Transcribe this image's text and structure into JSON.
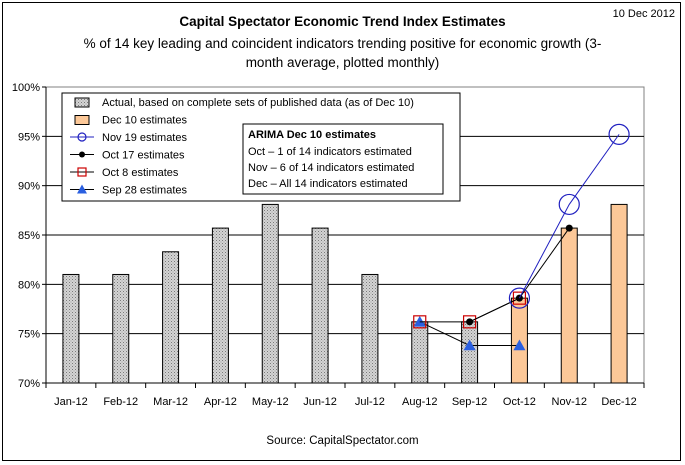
{
  "date_label": "10 Dec 2012",
  "source": "Source: CapitalSpectator.com",
  "colors": {
    "actual_fill": "#c8c8c8",
    "estimate_fill": "#fcc898",
    "estimate_stroke": "#000000",
    "nov19": "#2020c0",
    "oct17": "#000000",
    "oct8": "#cc0000",
    "sep28": "#2a5fe0"
  },
  "chart_data": {
    "type": "bar",
    "title": "Capital Spectator Economic Trend Index Estimates",
    "subtitle_line1": "% of 14 key leading and coincident indicators trending positive for economic growth (3-",
    "subtitle_line2": "month average, plotted monthly)",
    "categories": [
      "Jan-12",
      "Feb-12",
      "Mar-12",
      "Apr-12",
      "May-12",
      "Jun-12",
      "Jul-12",
      "Aug-12",
      "Sep-12",
      "Oct-12",
      "Nov-12",
      "Dec-12"
    ],
    "ylim": [
      70,
      100
    ],
    "yticks": [
      70,
      75,
      80,
      85,
      90,
      95,
      100
    ],
    "ytick_labels": [
      "70%",
      "75%",
      "80%",
      "85%",
      "90%",
      "95%",
      "100%"
    ],
    "grid": true,
    "series": [
      {
        "name": "Actual, based on complete sets of published data (as of Dec 10)",
        "kind": "bar",
        "values": [
          81.0,
          81.0,
          83.3,
          85.7,
          88.1,
          85.7,
          81.0,
          76.2,
          76.2,
          null,
          null,
          null
        ]
      },
      {
        "name": "Dec 10 estimates",
        "kind": "bar",
        "values": [
          null,
          null,
          null,
          null,
          null,
          null,
          null,
          null,
          null,
          78.6,
          85.7,
          88.1
        ]
      },
      {
        "name": "Nov 19 estimates",
        "kind": "line",
        "marker": "open-circle",
        "x": [
          "Oct-12",
          "Nov-12",
          "Dec-12"
        ],
        "values": [
          78.6,
          88.1,
          95.2
        ]
      },
      {
        "name": "Oct 17 estimates",
        "kind": "line",
        "marker": "dot",
        "x": [
          "Sep-12",
          "Oct-12",
          "Nov-12"
        ],
        "values": [
          76.2,
          78.6,
          85.7
        ]
      },
      {
        "name": "Oct 8 estimates",
        "kind": "line",
        "marker": "open-square",
        "x": [
          "Aug-12",
          "Sep-12",
          "Oct-12"
        ],
        "values": [
          76.2,
          76.2,
          78.6
        ]
      },
      {
        "name": "Sep 28 estimates",
        "kind": "line",
        "marker": "triangle",
        "x": [
          "Aug-12",
          "Sep-12",
          "Oct-12"
        ],
        "values": [
          76.2,
          73.8,
          73.8
        ]
      }
    ],
    "legend_placement": "top-left",
    "annotation": {
      "title": "ARIMA Dec 10 estimates",
      "lines": [
        "Oct – 1 of 14 indicators estimated",
        "Nov – 6 of 14 indicators estimated",
        "Dec – All 14 indicators estimated"
      ]
    }
  }
}
